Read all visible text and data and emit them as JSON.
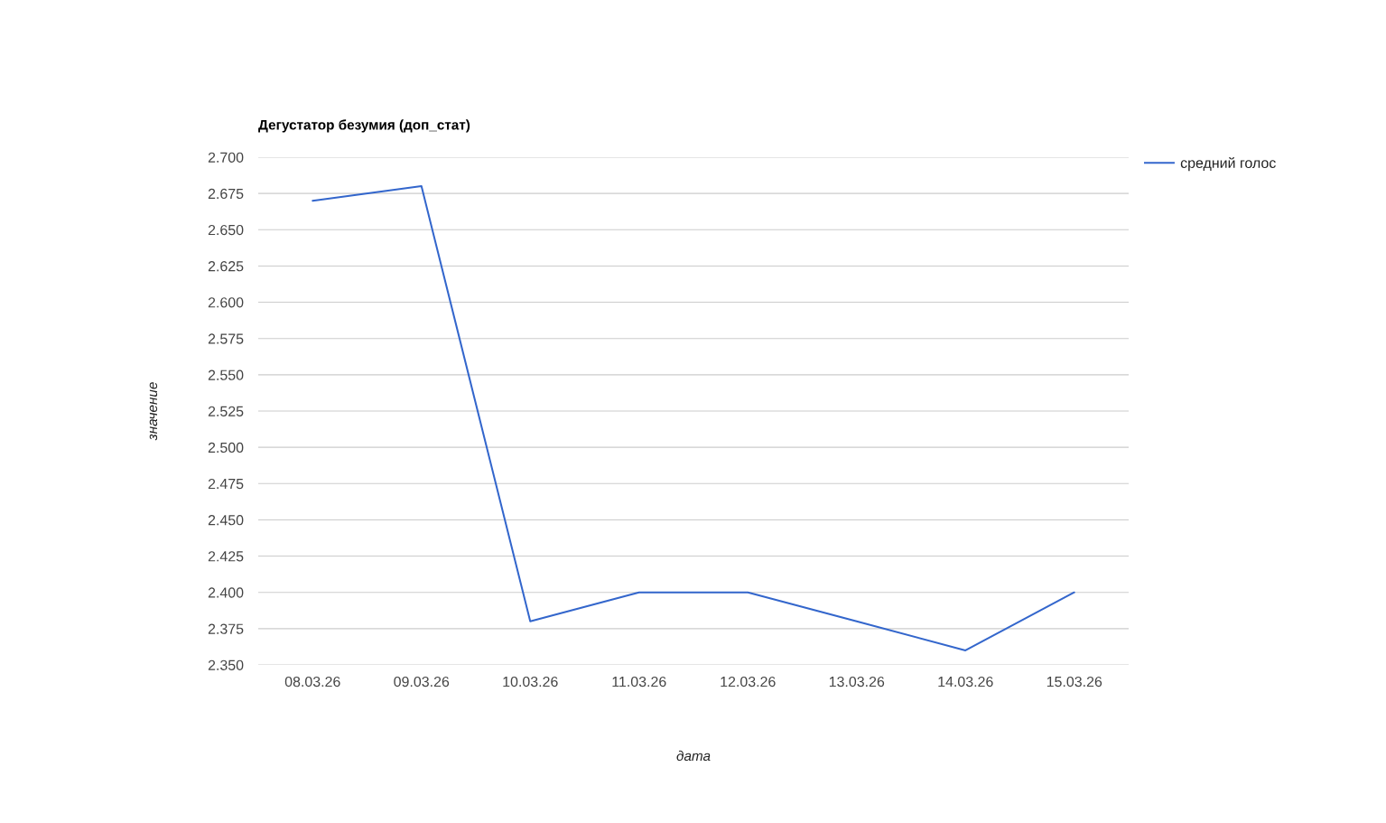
{
  "chart_data": {
    "type": "line",
    "title": "Дегустатор безумия (доп_стат)",
    "xlabel": "дата",
    "ylabel": "значение",
    "categories": [
      "08.03.26",
      "09.03.26",
      "10.03.26",
      "11.03.26",
      "12.03.26",
      "13.03.26",
      "14.03.26",
      "15.03.26"
    ],
    "series": [
      {
        "name": "средний голос",
        "color": "#3366cc",
        "values": [
          2.67,
          2.68,
          2.38,
          2.4,
          2.4,
          2.38,
          2.36,
          2.4
        ]
      }
    ],
    "ylim": [
      2.35,
      2.7
    ],
    "yticks": [
      {
        "value": 2.35,
        "label": "2.350"
      },
      {
        "value": 2.375,
        "label": "2.375"
      },
      {
        "value": 2.4,
        "label": "2.400"
      },
      {
        "value": 2.425,
        "label": "2.425"
      },
      {
        "value": 2.45,
        "label": "2.450"
      },
      {
        "value": 2.475,
        "label": "2.475"
      },
      {
        "value": 2.5,
        "label": "2.500"
      },
      {
        "value": 2.525,
        "label": "2.525"
      },
      {
        "value": 2.55,
        "label": "2.550"
      },
      {
        "value": 2.575,
        "label": "2.575"
      },
      {
        "value": 2.6,
        "label": "2.600"
      },
      {
        "value": 2.625,
        "label": "2.625"
      },
      {
        "value": 2.65,
        "label": "2.650"
      },
      {
        "value": 2.675,
        "label": "2.675"
      },
      {
        "value": 2.7,
        "label": "2.700"
      }
    ],
    "grid": "y",
    "legend": "top right",
    "marker": "none",
    "line_style": "solid"
  }
}
